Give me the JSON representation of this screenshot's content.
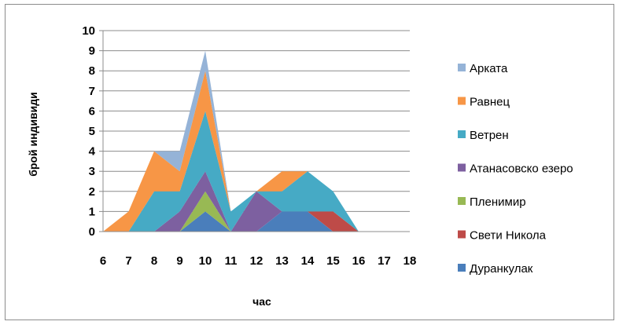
{
  "chart_data": {
    "type": "area",
    "stacked": true,
    "xlabel": "час",
    "ylabel": "брой индивиди",
    "x": [
      6,
      7,
      8,
      9,
      10,
      11,
      12,
      13,
      14,
      15,
      16,
      17,
      18
    ],
    "ylim": [
      0,
      10
    ],
    "yticks": [
      0,
      1,
      2,
      3,
      4,
      5,
      6,
      7,
      8,
      9,
      10
    ],
    "grid": true,
    "legend_position": "right",
    "series": [
      {
        "name": "Дуранкулак",
        "color": "#4a7ebb",
        "values": [
          0,
          0,
          0,
          0,
          1,
          0,
          0,
          1,
          1,
          0,
          0,
          0,
          0
        ]
      },
      {
        "name": "Свети Никола",
        "color": "#be4b48",
        "values": [
          0,
          0,
          0,
          0,
          0,
          0,
          0,
          0,
          0,
          1,
          0,
          0,
          0
        ]
      },
      {
        "name": "Пленимир",
        "color": "#98b954",
        "values": [
          0,
          0,
          0,
          0,
          1,
          0,
          0,
          0,
          0,
          0,
          0,
          0,
          0
        ]
      },
      {
        "name": "Атанасовско езеро",
        "color": "#7d60a0",
        "values": [
          0,
          0,
          0,
          1,
          1,
          0,
          2,
          0,
          0,
          0,
          0,
          0,
          0
        ]
      },
      {
        "name": "Ветрен",
        "color": "#46aac5",
        "values": [
          0,
          0,
          2,
          1,
          3,
          1,
          0,
          1,
          2,
          1,
          0,
          0,
          0
        ]
      },
      {
        "name": "Равнец",
        "color": "#f79646",
        "values": [
          0,
          1,
          2,
          1,
          2,
          0,
          0,
          1,
          0,
          0,
          0,
          0,
          0
        ]
      },
      {
        "name": "Арката",
        "color": "#95b3d7",
        "values": [
          0,
          0,
          0,
          1,
          1,
          0,
          0,
          0,
          0,
          0,
          0,
          0,
          0
        ]
      }
    ]
  }
}
